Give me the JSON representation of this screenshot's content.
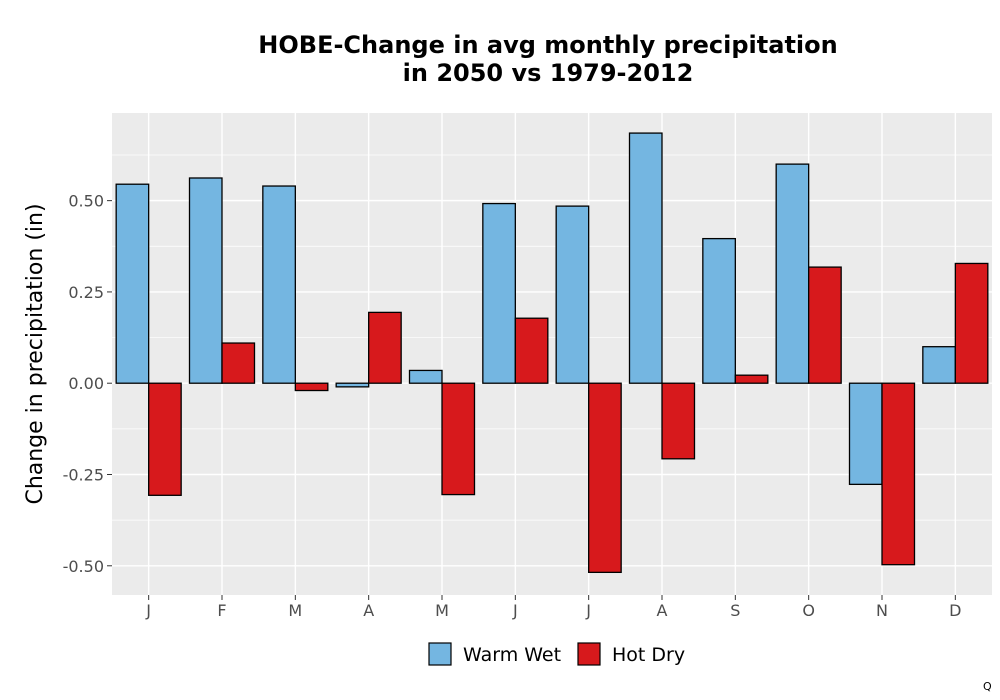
{
  "chart_data": {
    "type": "bar",
    "title": "HOBE-Change in avg monthly precipitation",
    "subtitle": "in 2050 vs 1979-2012",
    "ylabel": "Change in precipitation (in)",
    "xlabel": "",
    "categories": [
      "J",
      "F",
      "M",
      "A",
      "M",
      "J",
      "J",
      "A",
      "S",
      "O",
      "N",
      "D"
    ],
    "series": [
      {
        "name": "Warm Wet",
        "color": "#74b6e1",
        "values": [
          0.545,
          0.562,
          0.54,
          -0.01,
          0.035,
          0.492,
          0.485,
          0.685,
          0.396,
          0.6,
          -0.277,
          0.1
        ]
      },
      {
        "name": "Hot Dry",
        "color": "#d7191c",
        "values": [
          -0.307,
          0.11,
          -0.02,
          0.194,
          -0.305,
          0.178,
          -0.518,
          -0.207,
          0.022,
          0.318,
          -0.497,
          0.328
        ]
      }
    ],
    "ylim": [
      -0.58,
      0.74
    ],
    "yticks": [
      -0.5,
      -0.25,
      0.0,
      0.25,
      0.5
    ],
    "ytick_labels": [
      "-0.50",
      "-0.25",
      "0.00",
      "0.25",
      "0.50"
    ],
    "grid": true,
    "legend": "bottom",
    "panel_color": "#ebebeb"
  },
  "corner_mark": "Q"
}
